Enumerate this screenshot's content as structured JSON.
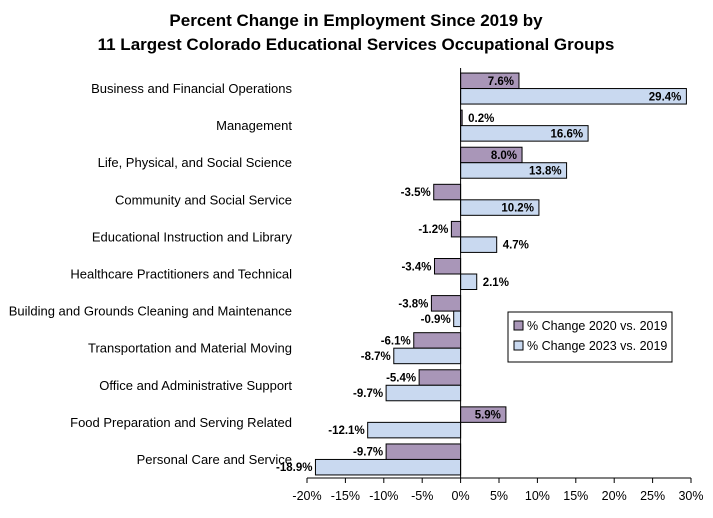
{
  "chart_data": {
    "type": "bar",
    "orientation": "horizontal",
    "title": [
      "Percent Change in Employment Since 2019 by",
      "11 Largest Colorado Educational Services Occupational Groups"
    ],
    "categories": [
      "Business and Financial Operations",
      "Management",
      "Life, Physical, and Social Science",
      "Community and Social Service",
      "Educational Instruction and Library",
      "Healthcare Practitioners and Technical",
      "Building and Grounds Cleaning and Maintenance",
      "Transportation and Material Moving",
      "Office and Administrative Support",
      "Food Preparation and Serving Related",
      "Personal Care and Service"
    ],
    "series": [
      {
        "name": "% Change 2020 vs. 2019",
        "color": "#a996b8",
        "values": [
          7.6,
          0.2,
          8.0,
          -3.5,
          -1.2,
          -3.4,
          -3.8,
          -6.1,
          -5.4,
          5.9,
          -9.7
        ],
        "labels": [
          "7.6%",
          "0.2%",
          "8.0%",
          "-3.5%",
          "-1.2%",
          "-3.4%",
          "-3.8%",
          "-6.1%",
          "-5.4%",
          "5.9%",
          "-9.7%"
        ]
      },
      {
        "name": "% Change 2023 vs. 2019",
        "color": "#c9d9f0",
        "values": [
          29.4,
          16.6,
          13.8,
          10.2,
          4.7,
          2.1,
          -0.9,
          -8.7,
          -9.7,
          -12.1,
          -18.9
        ],
        "labels": [
          "29.4%",
          "16.6%",
          "13.8%",
          "10.2%",
          "4.7%",
          "2.1%",
          "-0.9%",
          "-8.7%",
          "-9.7%",
          "-12.1%",
          "-18.9%"
        ]
      }
    ],
    "xlim": [
      -20,
      30
    ],
    "xticks": [
      -20,
      -15,
      -10,
      -5,
      0,
      5,
      10,
      15,
      20,
      25,
      30
    ],
    "xtick_labels": [
      "-20%",
      "-15%",
      "-10%",
      "-5%",
      "0%",
      "5%",
      "10%",
      "15%",
      "20%",
      "25%",
      "30%"
    ],
    "grid": false,
    "legend_position": "right-middle"
  }
}
